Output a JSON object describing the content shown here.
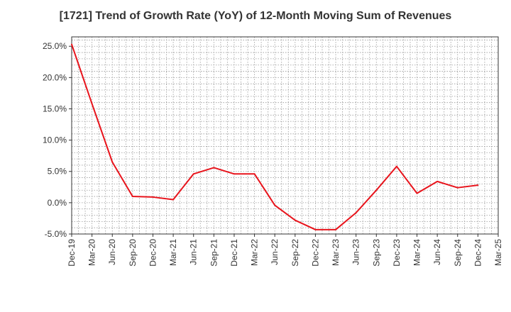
{
  "chart_data": {
    "type": "line",
    "title": "[1721]  Trend of Growth Rate (YoY) of 12-Month Moving Sum of Revenues",
    "xlabel": "",
    "ylabel": "",
    "x_ticks": [
      "Dec-19",
      "Mar-20",
      "Jun-20",
      "Sep-20",
      "Dec-20",
      "Mar-21",
      "Jun-21",
      "Sep-21",
      "Dec-21",
      "Mar-22",
      "Jun-22",
      "Sep-22",
      "Dec-22",
      "Mar-23",
      "Jun-23",
      "Sep-23",
      "Dec-23",
      "Mar-24",
      "Jun-24",
      "Sep-24",
      "Dec-24",
      "Mar-25"
    ],
    "y_ticks": [
      "25.0%",
      "20.0%",
      "15.0%",
      "10.0%",
      "5.0%",
      "0.0%",
      "-5.0%"
    ],
    "y_tick_values": [
      25,
      20,
      15,
      10,
      5,
      0,
      -5
    ],
    "ylim": [
      -5,
      26.5
    ],
    "grid": true,
    "series": [
      {
        "color": "#e8141c",
        "x": [
          "Dec-19",
          "Mar-20",
          "Jun-20",
          "Sep-20",
          "Dec-20",
          "Mar-21",
          "Jun-21",
          "Sep-21",
          "Dec-21",
          "Mar-22",
          "Jun-22",
          "Sep-22",
          "Dec-22",
          "Mar-23",
          "Jun-23",
          "Sep-23",
          "Dec-23",
          "Mar-24",
          "Jun-24",
          "Sep-24",
          "Dec-24"
        ],
        "values": [
          25.3,
          15.8,
          6.5,
          1.0,
          0.9,
          0.5,
          4.6,
          5.6,
          4.6,
          4.6,
          -0.4,
          -2.8,
          -4.3,
          -4.3,
          -1.6,
          2.0,
          5.8,
          1.5,
          3.4,
          2.4,
          2.8
        ]
      }
    ]
  }
}
